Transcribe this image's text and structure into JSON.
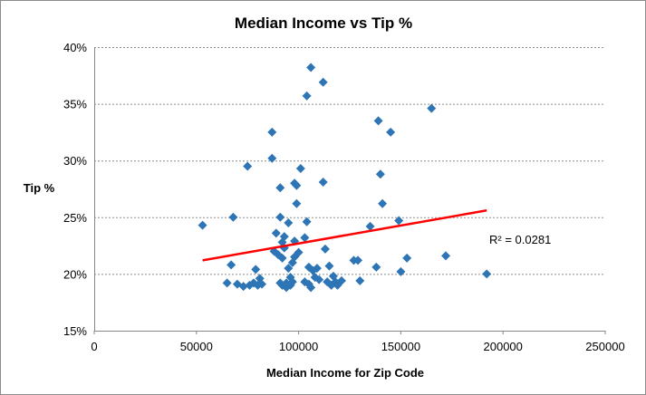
{
  "chart_data": {
    "type": "scatter",
    "title": "Median Income vs Tip %",
    "xlabel": "Median Income for Zip Code",
    "ylabel": "Tip %",
    "xlim": [
      0,
      250000
    ],
    "ylim": [
      0.15,
      0.4
    ],
    "x_ticks": [
      0,
      50000,
      100000,
      150000,
      200000,
      250000
    ],
    "x_tick_labels": [
      "0",
      "50000",
      "100000",
      "150000",
      "200000",
      "250000"
    ],
    "y_ticks": [
      0.15,
      0.2,
      0.25,
      0.3,
      0.35,
      0.4
    ],
    "y_tick_labels": [
      "15%",
      "20%",
      "25%",
      "30%",
      "35%",
      "40%"
    ],
    "grid": "horizontal-dashed",
    "marker_color": "#2E75B6",
    "trendline": {
      "type": "linear",
      "color": "#FF0000",
      "start": [
        53000,
        0.212
      ],
      "end": [
        192000,
        0.256
      ],
      "r2_label": "R² = 0.0281"
    },
    "points": [
      [
        53000,
        0.243
      ],
      [
        65000,
        0.192
      ],
      [
        67000,
        0.208
      ],
      [
        68000,
        0.25
      ],
      [
        70000,
        0.191
      ],
      [
        73000,
        0.189
      ],
      [
        75000,
        0.295
      ],
      [
        76000,
        0.19
      ],
      [
        78000,
        0.192
      ],
      [
        79000,
        0.204
      ],
      [
        80000,
        0.19
      ],
      [
        81000,
        0.196
      ],
      [
        82000,
        0.191
      ],
      [
        87000,
        0.325
      ],
      [
        87000,
        0.302
      ],
      [
        88000,
        0.22
      ],
      [
        89000,
        0.236
      ],
      [
        90000,
        0.217
      ],
      [
        91000,
        0.276
      ],
      [
        91000,
        0.25
      ],
      [
        91000,
        0.192
      ],
      [
        92000,
        0.19
      ],
      [
        92000,
        0.214
      ],
      [
        92000,
        0.228
      ],
      [
        93000,
        0.233
      ],
      [
        93000,
        0.223
      ],
      [
        94000,
        0.188
      ],
      [
        94000,
        0.192
      ],
      [
        95000,
        0.245
      ],
      [
        95000,
        0.205
      ],
      [
        96000,
        0.197
      ],
      [
        96000,
        0.19
      ],
      [
        97000,
        0.21
      ],
      [
        97000,
        0.193
      ],
      [
        98000,
        0.229
      ],
      [
        98000,
        0.215
      ],
      [
        98000,
        0.28
      ],
      [
        99000,
        0.278
      ],
      [
        99000,
        0.262
      ],
      [
        100000,
        0.219
      ],
      [
        101000,
        0.293
      ],
      [
        103000,
        0.232
      ],
      [
        103000,
        0.193
      ],
      [
        104000,
        0.357
      ],
      [
        104000,
        0.246
      ],
      [
        105000,
        0.206
      ],
      [
        105000,
        0.191
      ],
      [
        106000,
        0.382
      ],
      [
        106000,
        0.188
      ],
      [
        107000,
        0.203
      ],
      [
        108000,
        0.197
      ],
      [
        109000,
        0.205
      ],
      [
        110000,
        0.195
      ],
      [
        112000,
        0.369
      ],
      [
        112000,
        0.281
      ],
      [
        113000,
        0.222
      ],
      [
        114000,
        0.193
      ],
      [
        115000,
        0.207
      ],
      [
        116000,
        0.19
      ],
      [
        117000,
        0.198
      ],
      [
        118000,
        0.193
      ],
      [
        119000,
        0.19
      ],
      [
        121000,
        0.194
      ],
      [
        127000,
        0.212
      ],
      [
        129000,
        0.212
      ],
      [
        130000,
        0.194
      ],
      [
        135000,
        0.242
      ],
      [
        138000,
        0.206
      ],
      [
        139000,
        0.335
      ],
      [
        140000,
        0.288
      ],
      [
        141000,
        0.262
      ],
      [
        145000,
        0.325
      ],
      [
        149000,
        0.247
      ],
      [
        150000,
        0.202
      ],
      [
        153000,
        0.214
      ],
      [
        165000,
        0.346
      ],
      [
        172000,
        0.216
      ],
      [
        192000,
        0.2
      ]
    ]
  }
}
